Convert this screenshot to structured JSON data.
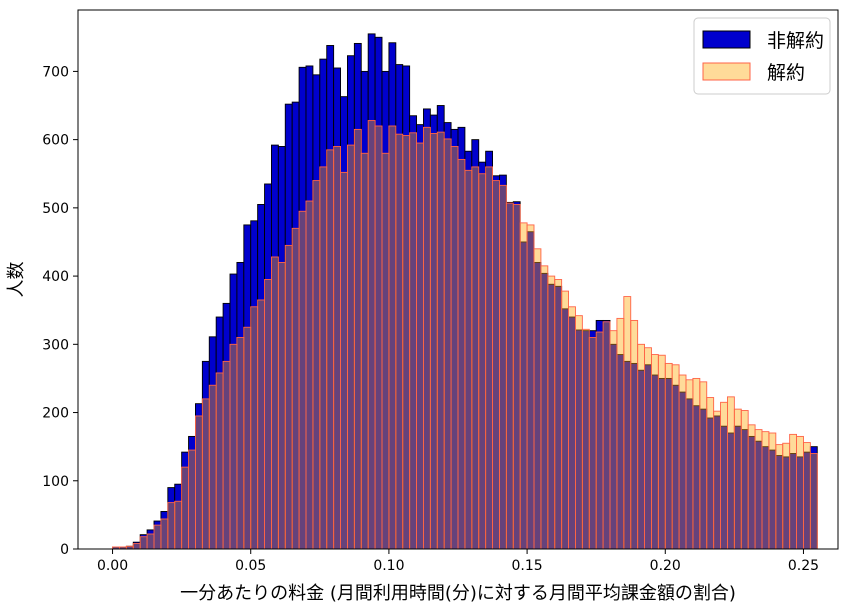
{
  "chart_data": {
    "type": "bar",
    "subtype": "overlaid-histogram",
    "xlabel": "一分あたりの料金 (月間利用時間(分)に対する月間平均課金額の割合)",
    "ylabel": "人数",
    "xlim": [
      -0.0125,
      0.2625
    ],
    "ylim": [
      0,
      790
    ],
    "xticks": [
      0.0,
      0.05,
      0.1,
      0.15,
      0.2,
      0.25
    ],
    "xtick_labels": [
      "0.00",
      "0.05",
      "0.10",
      "0.15",
      "0.20",
      "0.25"
    ],
    "yticks": [
      0,
      100,
      200,
      300,
      400,
      500,
      600,
      700
    ],
    "ytick_labels": [
      "0",
      "100",
      "200",
      "300",
      "400",
      "500",
      "600",
      "700"
    ],
    "legend_position": "top-right",
    "bin_start": 0.0,
    "bin_width": 0.0025,
    "series": [
      {
        "name": "非解約",
        "color": "#0000cd",
        "edge_color": "#000000",
        "values": [
          3,
          3,
          4,
          10,
          21,
          28,
          41,
          55,
          90,
          95,
          142,
          165,
          213,
          275,
          311,
          340,
          360,
          403,
          420,
          475,
          481,
          505,
          535,
          592,
          590,
          652,
          655,
          706,
          708,
          695,
          718,
          738,
          705,
          663,
          723,
          741,
          700,
          755,
          750,
          700,
          742,
          710,
          708,
          635,
          622,
          645,
          636,
          650,
          625,
          615,
          618,
          583,
          600,
          567,
          583,
          547,
          548,
          508,
          509,
          450,
          465,
          420,
          404,
          388,
          385,
          352,
          340,
          321,
          320,
          320,
          335,
          335,
          300,
          285,
          275,
          272,
          262,
          270,
          255,
          250,
          250,
          240,
          230,
          220,
          210,
          205,
          192,
          195,
          180,
          170,
          180,
          175,
          165,
          158,
          150,
          145,
          137,
          135,
          140,
          135,
          142,
          150
        ]
      },
      {
        "name": "解約",
        "color": "#ffa500",
        "fill_opacity": 0.4,
        "edge_color": "#ff6347",
        "values": [
          3,
          3,
          4,
          8,
          18,
          22,
          35,
          44,
          68,
          70,
          120,
          145,
          195,
          220,
          240,
          258,
          275,
          300,
          310,
          325,
          355,
          365,
          395,
          428,
          420,
          445,
          470,
          495,
          510,
          540,
          560,
          585,
          590,
          552,
          592,
          615,
          580,
          628,
          620,
          580,
          620,
          608,
          606,
          610,
          595,
          618,
          609,
          611,
          601,
          590,
          571,
          555,
          560,
          550,
          560,
          540,
          533,
          507,
          505,
          478,
          475,
          440,
          415,
          400,
          395,
          378,
          355,
          342,
          322,
          310,
          318,
          333,
          320,
          338,
          370,
          335,
          300,
          295,
          285,
          284,
          272,
          270,
          255,
          248,
          250,
          245,
          222,
          202,
          215,
          223,
          205,
          203,
          182,
          175,
          172,
          170,
          153,
          155,
          168,
          165,
          156,
          140
        ]
      }
    ]
  }
}
